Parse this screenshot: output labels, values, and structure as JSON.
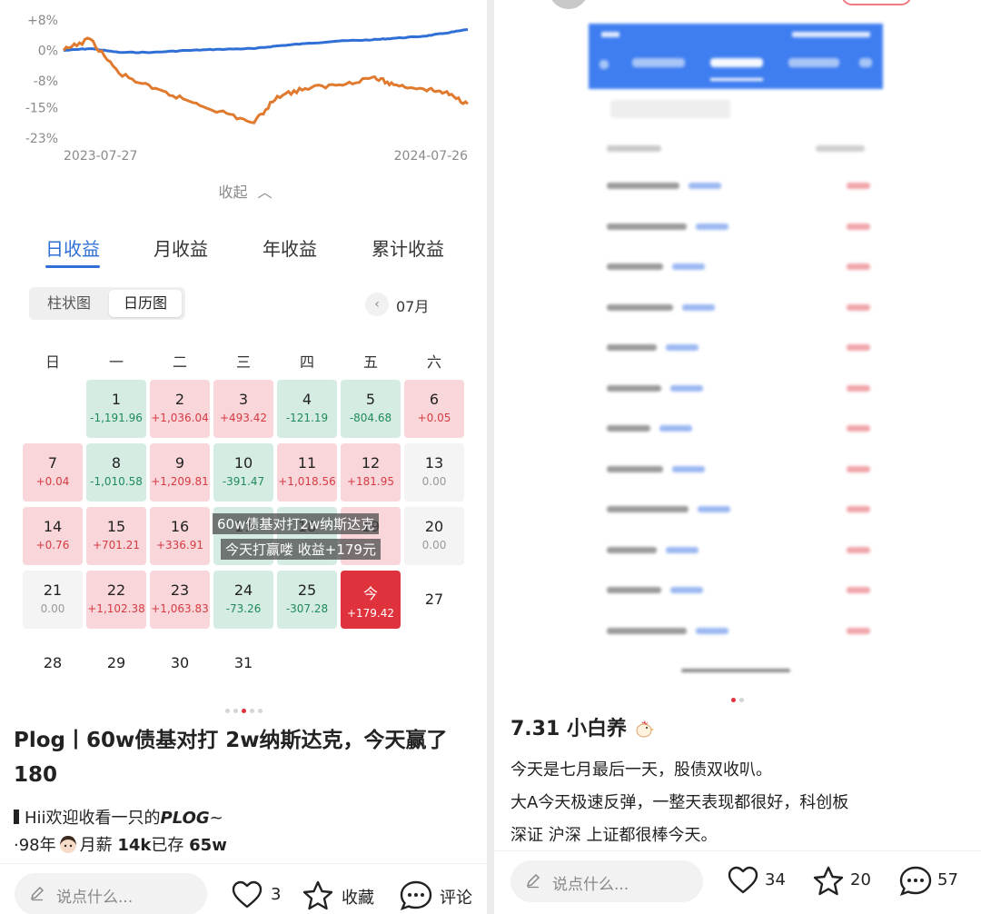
{
  "left": {
    "chart": {
      "y_ticks": [
        "+8%",
        "0%",
        "-8%",
        "-15%",
        "-23%"
      ],
      "x_start": "2023-07-27",
      "x_end": "2024-07-26"
    },
    "chart_data": {
      "type": "line",
      "title": "",
      "xlabel": "",
      "ylabel": "",
      "x": [
        "2023-07-27",
        "2023-08-20",
        "2023-09-15",
        "2023-10-15",
        "2023-11-15",
        "2023-12-15",
        "2024-01-15",
        "2024-02-05",
        "2024-03-01",
        "2024-04-01",
        "2024-05-01",
        "2024-05-20",
        "2024-06-15",
        "2024-07-05",
        "2024-07-26"
      ],
      "ylim": [
        -23,
        8
      ],
      "series": [
        {
          "values": [
            0,
            0.5,
            -0.5,
            -0.5,
            0,
            0.3,
            0.5,
            1.2,
            1.8,
            2.5,
            2.8,
            3.2,
            3.7,
            4.5,
            5.5
          ]
        },
        {
          "values": [
            0,
            3,
            -6,
            -10,
            -13,
            -16,
            -19,
            -12,
            -10,
            -9,
            -7,
            -9,
            -10,
            -11,
            -14
          ]
        }
      ],
      "colors": [
        "#2f6fd6",
        "#e07a2f"
      ],
      "grid": false
    },
    "collapse_label": "收起",
    "tabs": [
      "日收益",
      "月收益",
      "年收益",
      "累计收益"
    ],
    "view_toggle": [
      "柱状图",
      "日历图"
    ],
    "month": "07月",
    "weekdays": [
      "日",
      "一",
      "二",
      "三",
      "四",
      "五",
      "六"
    ],
    "calendar": [
      {
        "day": "1",
        "value": "-1,191.96",
        "type": "down",
        "col": 1,
        "row": 0
      },
      {
        "day": "2",
        "value": "+1,036.04",
        "type": "up",
        "col": 2,
        "row": 0
      },
      {
        "day": "3",
        "value": "+493.42",
        "type": "up",
        "col": 3,
        "row": 0
      },
      {
        "day": "4",
        "value": "-121.19",
        "type": "down",
        "col": 4,
        "row": 0
      },
      {
        "day": "5",
        "value": "-804.68",
        "type": "down",
        "col": 5,
        "row": 0
      },
      {
        "day": "6",
        "value": "+0.05",
        "type": "up",
        "col": 6,
        "row": 0
      },
      {
        "day": "7",
        "value": "+0.04",
        "type": "up",
        "col": 0,
        "row": 1
      },
      {
        "day": "8",
        "value": "-1,010.58",
        "type": "down",
        "col": 1,
        "row": 1
      },
      {
        "day": "9",
        "value": "+1,209.81",
        "type": "up",
        "col": 2,
        "row": 1
      },
      {
        "day": "10",
        "value": "-391.47",
        "type": "down",
        "col": 3,
        "row": 1
      },
      {
        "day": "11",
        "value": "+1,018.56",
        "type": "up",
        "col": 4,
        "row": 1
      },
      {
        "day": "12",
        "value": "+181.95",
        "type": "up",
        "col": 5,
        "row": 1
      },
      {
        "day": "13",
        "value": "0.00",
        "type": "flat",
        "col": 6,
        "row": 1
      },
      {
        "day": "14",
        "value": "+0.76",
        "type": "up",
        "col": 0,
        "row": 2
      },
      {
        "day": "15",
        "value": "+701.21",
        "type": "up",
        "col": 1,
        "row": 2
      },
      {
        "day": "16",
        "value": "+336.91",
        "type": "up",
        "col": 2,
        "row": 2
      },
      {
        "day": "17",
        "value": "",
        "type": "down",
        "col": 3,
        "row": 2
      },
      {
        "day": "18",
        "value": "",
        "type": "down",
        "col": 4,
        "row": 2
      },
      {
        "day": "19",
        "value": "",
        "type": "up",
        "col": 5,
        "row": 2
      },
      {
        "day": "20",
        "value": "0.00",
        "type": "flat",
        "col": 6,
        "row": 2
      },
      {
        "day": "21",
        "value": "0.00",
        "type": "flat",
        "col": 0,
        "row": 3
      },
      {
        "day": "22",
        "value": "+1,102.38",
        "type": "up",
        "col": 1,
        "row": 3
      },
      {
        "day": "23",
        "value": "+1,063.83",
        "type": "up",
        "col": 2,
        "row": 3
      },
      {
        "day": "24",
        "value": "-73.26",
        "type": "down",
        "col": 3,
        "row": 3
      },
      {
        "day": "25",
        "value": "-307.28",
        "type": "down",
        "col": 4,
        "row": 3
      },
      {
        "day": "今",
        "value": "+179.42",
        "type": "today",
        "col": 5,
        "row": 3
      },
      {
        "day": "27",
        "value": "",
        "type": "none",
        "col": 6,
        "row": 3
      },
      {
        "day": "28",
        "value": "",
        "type": "none",
        "col": 0,
        "row": 4
      },
      {
        "day": "29",
        "value": "",
        "type": "none",
        "col": 1,
        "row": 4
      },
      {
        "day": "30",
        "value": "",
        "type": "none",
        "col": 2,
        "row": 4
      },
      {
        "day": "31",
        "value": "",
        "type": "none",
        "col": 3,
        "row": 4
      }
    ],
    "overlay_line1": "60w债基对打2w纳斯达克",
    "overlay_line2": "今天打赢喽 收益+179元",
    "post_title": "Plog丨60w债基对打 2w纳斯达克，今天赢了180",
    "body_line1_prefix": "Hii欢迎收看一只的",
    "body_line1_em": "PLOG",
    "body_line1_suffix": "~",
    "body_line2_a": "·98年",
    "body_line2_b": "月薪",
    "body_line2_c": "14k",
    "body_line2_d": "已存",
    "body_line2_e": "65w",
    "comment_placeholder": "说点什么...",
    "likes": "3",
    "collect_label": "收藏",
    "comment_label": "评论"
  },
  "right": {
    "post_title": "7.31 小白养",
    "body": [
      "今天是七月最后一天，股债双收叭。",
      "大A今天极速反弹，一整天表现都很好，科创板",
      "深证 沪深 上证都很棒今天。"
    ],
    "comment_placeholder": "说点什么...",
    "likes": "34",
    "collects": "20",
    "comments": "57"
  },
  "colors": {
    "accent_blue": "#2f6fd6",
    "gain_red": "#d63b44",
    "loss_green": "#1f8a5a",
    "today_red": "#e0323d"
  }
}
